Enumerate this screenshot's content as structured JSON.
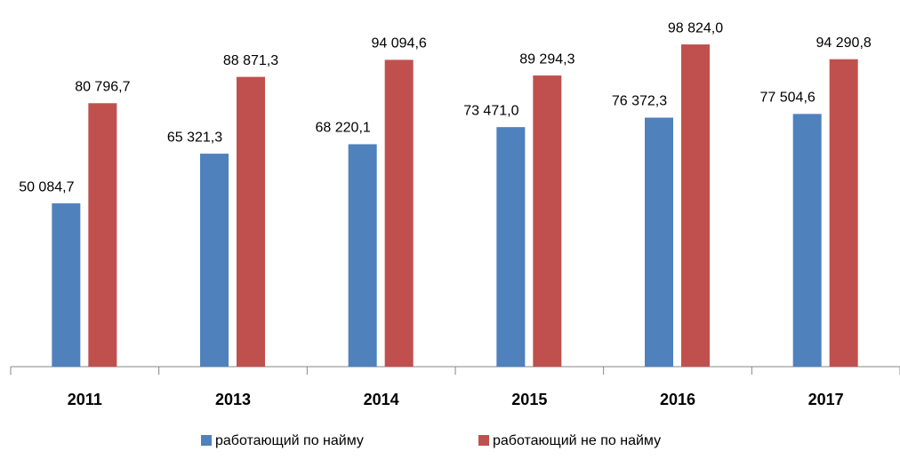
{
  "chart_data": {
    "type": "bar",
    "categories": [
      "2011",
      "2013",
      "2014",
      "2015",
      "2016",
      "2017"
    ],
    "series": [
      {
        "name": "работающий по найму",
        "color": "#4f81bd",
        "values": [
          50084.7,
          65321.3,
          68220.1,
          73471.0,
          76372.3,
          77504.6
        ],
        "value_labels": [
          "50 084,7",
          "65 321,3",
          "68 220,1",
          "73 471,0",
          "76 372,3",
          "77 504,6"
        ]
      },
      {
        "name": "работающий не по найму",
        "color": "#c0504d",
        "values": [
          80796.7,
          88871.3,
          94094.6,
          89294.3,
          98824.0,
          94290.8
        ],
        "value_labels": [
          "80 796,7",
          "88 871,3",
          "94 094,6",
          "89 294,3",
          "98 824,0",
          "94 290,8"
        ]
      }
    ],
    "ylim": [
      0,
      110000
    ],
    "legend": "bottom"
  }
}
